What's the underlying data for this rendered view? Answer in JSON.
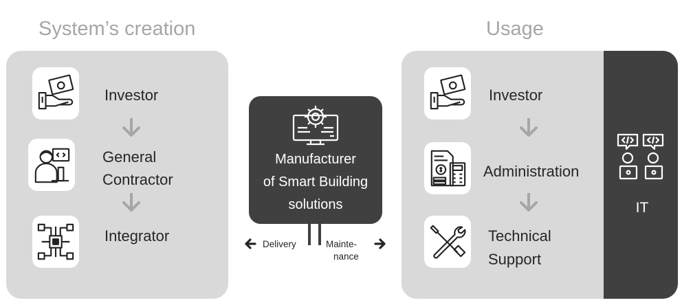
{
  "headings": {
    "creation": "System’s creation",
    "usage": "Usage"
  },
  "creation": {
    "investor": "Investor",
    "contractor_line1": "General",
    "contractor_line2": "Contractor",
    "integrator": "Integrator"
  },
  "center": {
    "line1": "Manufacturer",
    "line2": "of Smart Building",
    "line3": "solutions",
    "delivery": "Delivery",
    "maint_line1": "Mainte-",
    "maint_line2": "nance"
  },
  "usage": {
    "investor": "Investor",
    "administration": "Administration",
    "support_line1": "Technical",
    "support_line2": "Support",
    "it": "IT"
  },
  "icons": {
    "investor": "hand-money-icon",
    "contractor": "developer-computer-icon",
    "integrator": "circuit-chip-icon",
    "manufacturer": "computer-gear-icon",
    "administration": "accounting-calculator-icon",
    "support": "wrench-screwdriver-icon",
    "it": "programmers-icon"
  },
  "colors": {
    "panel": "#d9d9d9",
    "dark": "#404040",
    "heading": "#a6a6a6",
    "arrow": "#a6a6a6",
    "text": "#262626"
  }
}
